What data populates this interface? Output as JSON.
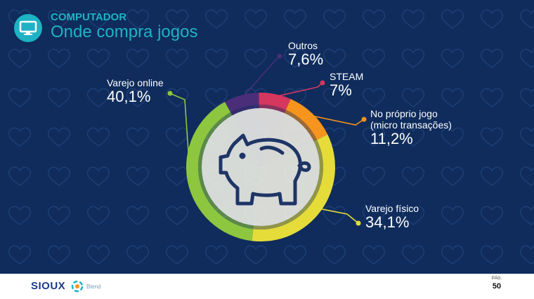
{
  "header": {
    "kicker": "COMPUTADOR",
    "subtitle": "Onde compra jogos",
    "icon": "monitor-icon"
  },
  "chart_data": {
    "type": "pie",
    "slices": [
      {
        "label": "Varejo online",
        "value": 40.1,
        "value_text": "40,1%",
        "color": "#8dc63f"
      },
      {
        "label": "Outros",
        "value": 7.6,
        "value_text": "7,6%",
        "color": "#4a2e7a"
      },
      {
        "label": "STEAM",
        "value": 7,
        "value_text": "7%",
        "color": "#d6375e"
      },
      {
        "label": "No próprio jogo\n(micro transações)",
        "value": 11.2,
        "value_text": "11,2%",
        "color": "#f7941d"
      },
      {
        "label": "Varejo físico",
        "value": 34.1,
        "value_text": "34,1%",
        "color": "#e5dc3a"
      }
    ],
    "center_icon": "piggy-bank-icon"
  },
  "footer": {
    "brand": "SIOUX",
    "partner": "Blend",
    "page_caption": "PÁG.",
    "page_number": "50"
  },
  "colors": {
    "background": "#0f2c5c",
    "accent": "#1db3c4",
    "icon_stroke": "#1e3566"
  }
}
